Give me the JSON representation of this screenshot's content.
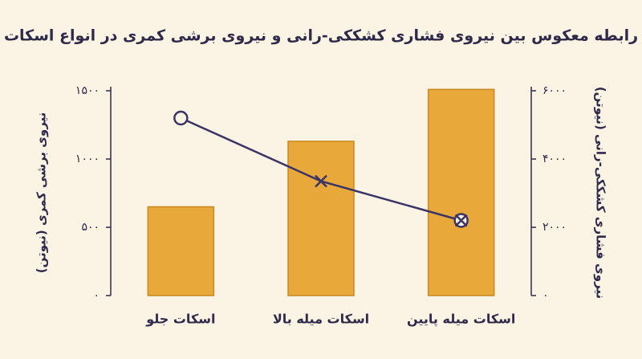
{
  "chart_data": {
    "type": "bar-line",
    "title": "رابطه معکوس بین نیروی فشاری کشککی-رانی و نیروی برشی کمری در انواع اسکات",
    "y_label": "نیروی برشی کمری (نیوتن)",
    "y2_label": "نیروی فشاری کشککی-رانی (نیوتن)",
    "categories": [
      "اسکات جلو",
      "اسکات میله بالا",
      "اسکات میله پایین"
    ],
    "series": [
      {
        "type": "bar",
        "color": "#e9a83a",
        "axis": "y",
        "values": [
          650,
          1130,
          1510
        ]
      },
      {
        "type": "line",
        "color": "#3b3466",
        "axis": "y2",
        "markers": [
          "circle",
          "x",
          "circle-x"
        ],
        "values": [
          5200,
          3350,
          2200
        ]
      }
    ],
    "ylim": [
      0,
      1500
    ],
    "yticks": [
      {
        "value": 0,
        "label": "۰"
      },
      {
        "value": 500,
        "label": "۵۰۰"
      },
      {
        "value": 1000,
        "label": "۱۰۰۰"
      },
      {
        "value": 1500,
        "label": "۱۵۰۰"
      }
    ],
    "y2lim": [
      0,
      6000
    ],
    "y2ticks": [
      {
        "value": 0,
        "label": "۰"
      },
      {
        "value": 2000,
        "label": "۲۰۰۰"
      },
      {
        "value": 4000,
        "label": "۴۰۰۰"
      },
      {
        "value": 6000,
        "label": "۶۰۰۰"
      }
    ]
  }
}
